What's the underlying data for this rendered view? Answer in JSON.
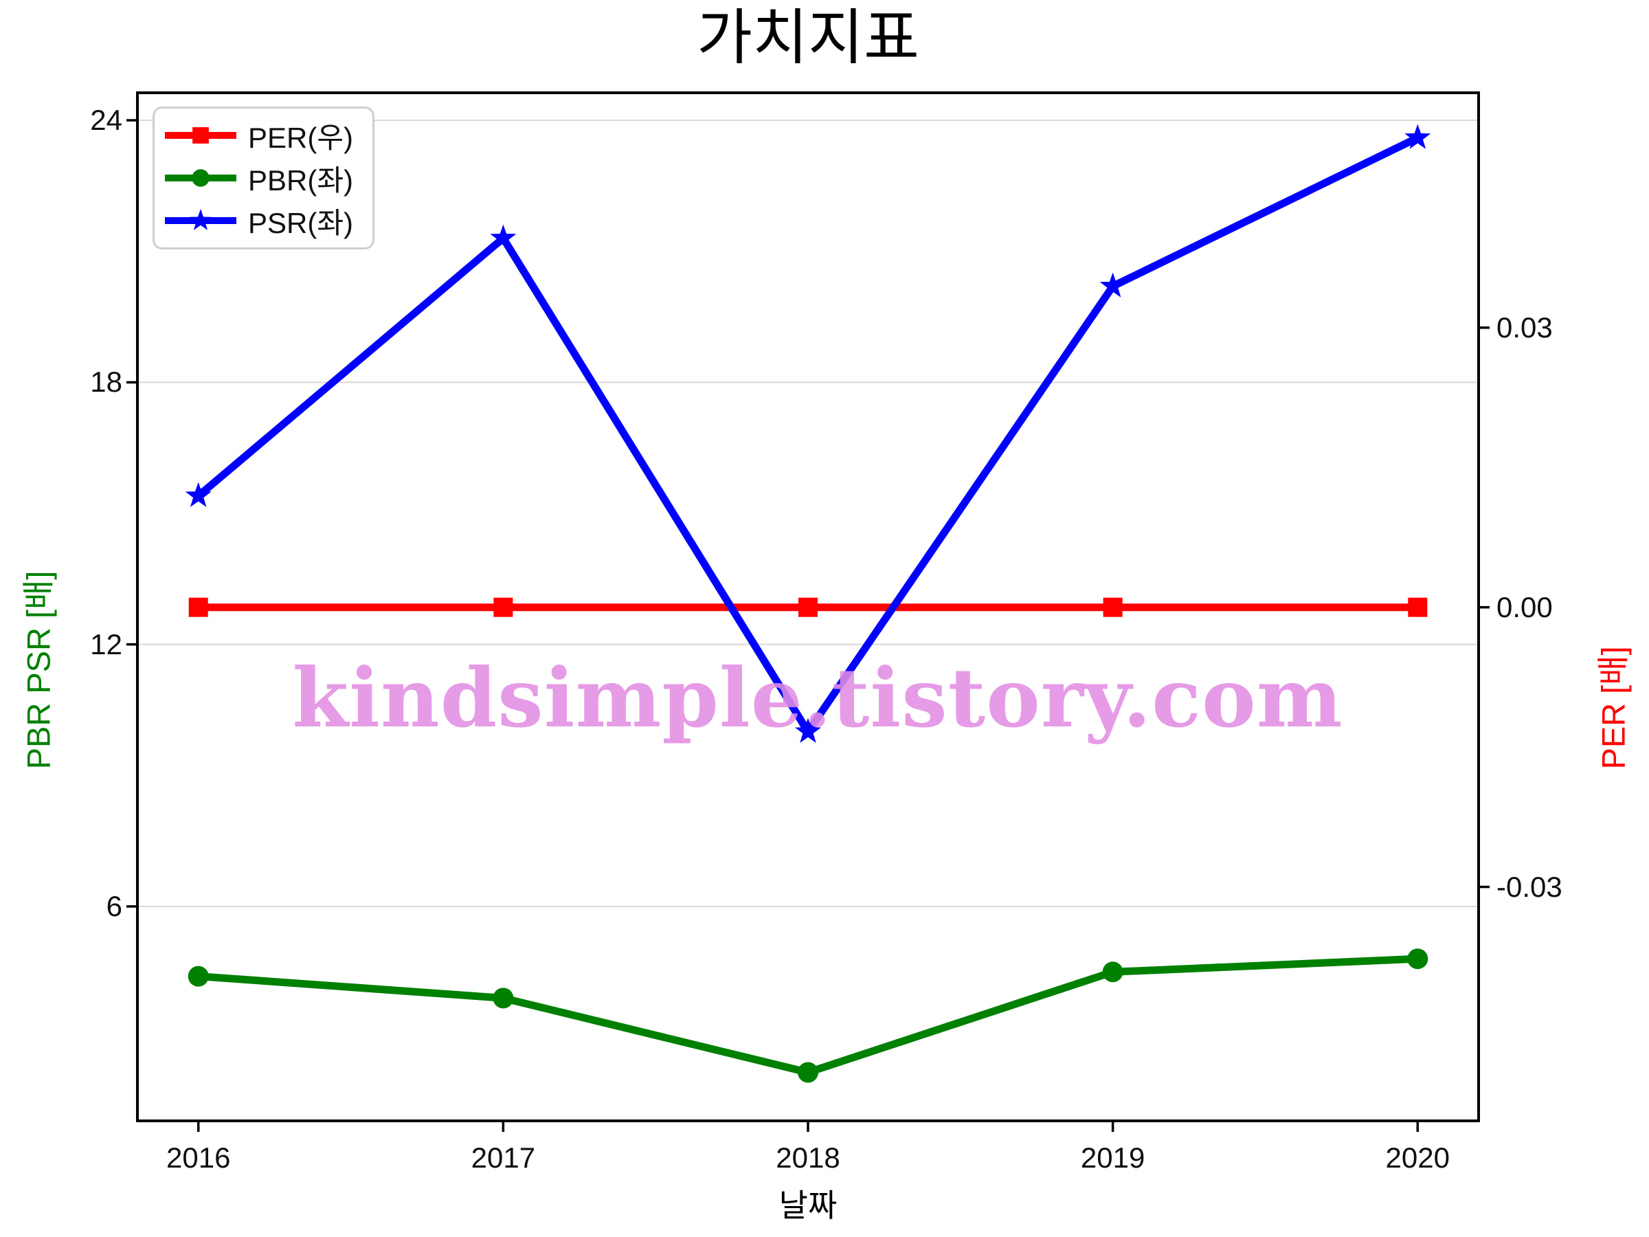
{
  "watermark": "kindsimple.tistory.com",
  "legend": {
    "items": [
      {
        "label": "PER(우)"
      },
      {
        "label": "PBR(좌)"
      },
      {
        "label": "PSR(좌)"
      }
    ]
  },
  "chart_data": {
    "type": "line",
    "title": "가치지표",
    "xlabel": "날짜",
    "ylabel_left": "PBR PSR [배]",
    "ylabel_right": "PER [배]",
    "ylabel_left_color": "#008000",
    "ylabel_right_color": "#ff0000",
    "x": [
      2016,
      2017,
      2018,
      2019,
      2020
    ],
    "x_tick_labels": [
      "2016",
      "2017",
      "2018",
      "2019",
      "2020"
    ],
    "series": [
      {
        "name": "PER(우)",
        "axis": "right",
        "color": "#ff0000",
        "marker": "square",
        "values": [
          0.0,
          0.0,
          0.0,
          0.0,
          0.0
        ]
      },
      {
        "name": "PBR(좌)",
        "axis": "left",
        "color": "#008000",
        "marker": "circle",
        "values": [
          4.4,
          3.9,
          2.2,
          4.5,
          4.8
        ]
      },
      {
        "name": "PSR(좌)",
        "axis": "left",
        "color": "#0000ff",
        "marker": "star",
        "values": [
          15.4,
          21.3,
          10.0,
          20.2,
          23.6
        ]
      }
    ],
    "left_axis": {
      "ticks": [
        {
          "v": 24,
          "label": "24"
        },
        {
          "v": 18,
          "label": "18"
        },
        {
          "v": 12,
          "label": "12"
        },
        {
          "v": 6,
          "label": "6"
        }
      ],
      "lim": [
        1.09,
        24.63
      ]
    },
    "right_axis": {
      "ticks": [
        {
          "v": 0.03,
          "label": "0.03"
        },
        {
          "v": 0,
          "label": "0.00"
        },
        {
          "v": -0.03,
          "label": "-0.03"
        }
      ],
      "lim": [
        -0.0551,
        0.0552
      ]
    },
    "x_axis": {
      "lim": [
        2015.8,
        2020.2
      ]
    },
    "grid": "horizontal",
    "grid_color": "#d8d8d8",
    "legend_loc": "upper left"
  }
}
